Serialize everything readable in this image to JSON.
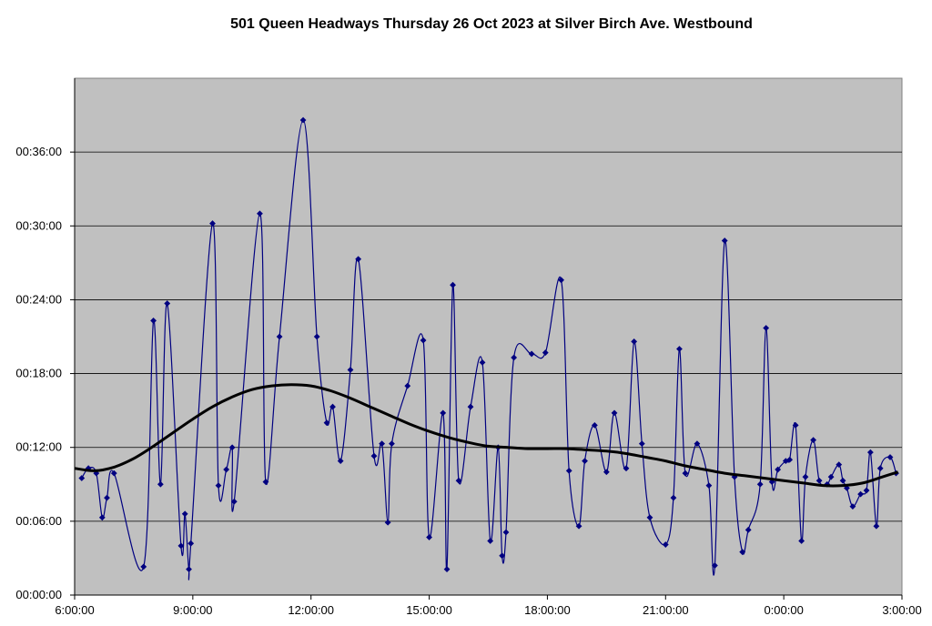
{
  "chart_data": {
    "type": "line",
    "title": "501 Queen Headways Thursday 26 Oct 2023 at Silver Birch Ave. Westbound",
    "xlabel": "",
    "ylabel": "",
    "x_unit": "hours since 6:00:00 (same day); 18 = 0:00:00 next day",
    "xlim": [
      0,
      21
    ],
    "ylim_minutes": [
      0,
      42
    ],
    "x_ticks": [
      "6:00:00",
      "9:00:00",
      "12:00:00",
      "15:00:00",
      "18:00:00",
      "21:00:00",
      "0:00:00",
      "3:00:00"
    ],
    "y_ticks": [
      "00:00:00",
      "00:06:00",
      "00:12:00",
      "00:18:00",
      "00:24:00",
      "00:30:00",
      "00:36:00"
    ],
    "grid": "horizontal",
    "colors": {
      "plot_bg": "#c0c0c0",
      "series": "#000080",
      "trend": "#000000"
    },
    "series": [
      {
        "name": "",
        "color": "#000080",
        "marker": "diamond",
        "x": [
          0.18,
          0.35,
          0.55,
          0.7,
          0.82,
          1.0,
          1.75,
          2.0,
          2.18,
          2.35,
          2.7,
          2.8,
          2.9,
          2.95,
          3.5,
          3.65,
          3.85,
          4.0,
          4.05,
          4.7,
          4.85,
          5.2,
          5.8,
          6.15,
          6.4,
          6.55,
          6.75,
          7.0,
          7.2,
          7.6,
          7.8,
          7.95,
          8.05,
          8.45,
          8.85,
          9.0,
          9.35,
          9.45,
          9.6,
          9.75,
          10.05,
          10.35,
          10.55,
          10.75,
          10.85,
          10.95,
          11.15,
          11.6,
          11.95,
          12.35,
          12.55,
          12.8,
          12.95,
          13.2,
          13.5,
          13.7,
          14.0,
          14.2,
          14.4,
          14.6,
          15.0,
          15.2,
          15.35,
          15.5,
          15.8,
          16.1,
          16.25,
          16.5,
          16.75,
          16.95,
          17.1,
          17.4,
          17.55,
          17.7,
          17.85,
          18.05,
          18.15,
          18.3,
          18.45,
          18.55,
          18.75,
          18.9,
          19.1,
          19.2,
          19.4,
          19.5,
          19.6,
          19.75,
          19.95,
          20.1,
          20.2,
          20.35,
          20.45,
          20.7,
          20.85
        ],
        "y_minutes": [
          9.5,
          10.3,
          9.9,
          6.3,
          7.9,
          9.9,
          2.3,
          22.3,
          9.0,
          23.7,
          4.0,
          6.6,
          2.1,
          4.2,
          30.2,
          8.9,
          10.2,
          12.0,
          7.6,
          31.0,
          9.2,
          21.0,
          38.6,
          21.0,
          14.0,
          15.3,
          10.9,
          18.3,
          27.3,
          11.3,
          12.3,
          5.9,
          12.3,
          17.0,
          20.7,
          4.7,
          14.8,
          2.1,
          25.2,
          9.3,
          15.3,
          18.9,
          4.4,
          12.0,
          3.2,
          5.1,
          19.3,
          19.6,
          19.7,
          25.6,
          10.1,
          5.6,
          10.9,
          13.8,
          10.0,
          14.8,
          10.3,
          20.6,
          12.3,
          6.3,
          4.1,
          7.9,
          20.0,
          9.9,
          12.3,
          8.9,
          2.4,
          28.8,
          9.6,
          3.5,
          5.3,
          9.0,
          21.7,
          9.2,
          10.2,
          10.9,
          11.0,
          13.8,
          4.4,
          9.6,
          12.6,
          9.3,
          9.0,
          9.6,
          10.6,
          9.3,
          8.7,
          7.2,
          8.2,
          8.5,
          11.6,
          5.6,
          10.3,
          11.2,
          9.9
        ]
      }
    ],
    "trendline": {
      "name": "",
      "color": "#000000",
      "x": [
        0,
        0.5,
        1,
        1.5,
        2,
        2.5,
        3,
        3.5,
        4,
        4.5,
        5,
        5.5,
        6,
        6.5,
        7,
        7.5,
        8,
        8.5,
        9,
        9.5,
        10,
        10.5,
        11,
        11.5,
        12,
        12.5,
        13,
        13.5,
        14,
        14.5,
        15,
        15.5,
        16,
        16.5,
        17,
        17.5,
        18,
        18.5,
        19,
        19.5,
        20,
        20.5,
        20.9
      ],
      "y_minutes": [
        10.3,
        10.1,
        10.4,
        11.1,
        12.1,
        13.2,
        14.3,
        15.3,
        16.1,
        16.7,
        17.0,
        17.1,
        17.0,
        16.6,
        16.0,
        15.3,
        14.6,
        13.9,
        13.3,
        12.8,
        12.4,
        12.1,
        12.0,
        11.9,
        11.9,
        11.9,
        11.8,
        11.7,
        11.5,
        11.2,
        10.9,
        10.5,
        10.2,
        9.9,
        9.7,
        9.5,
        9.3,
        9.1,
        8.9,
        8.9,
        9.1,
        9.6,
        10.0
      ]
    }
  }
}
